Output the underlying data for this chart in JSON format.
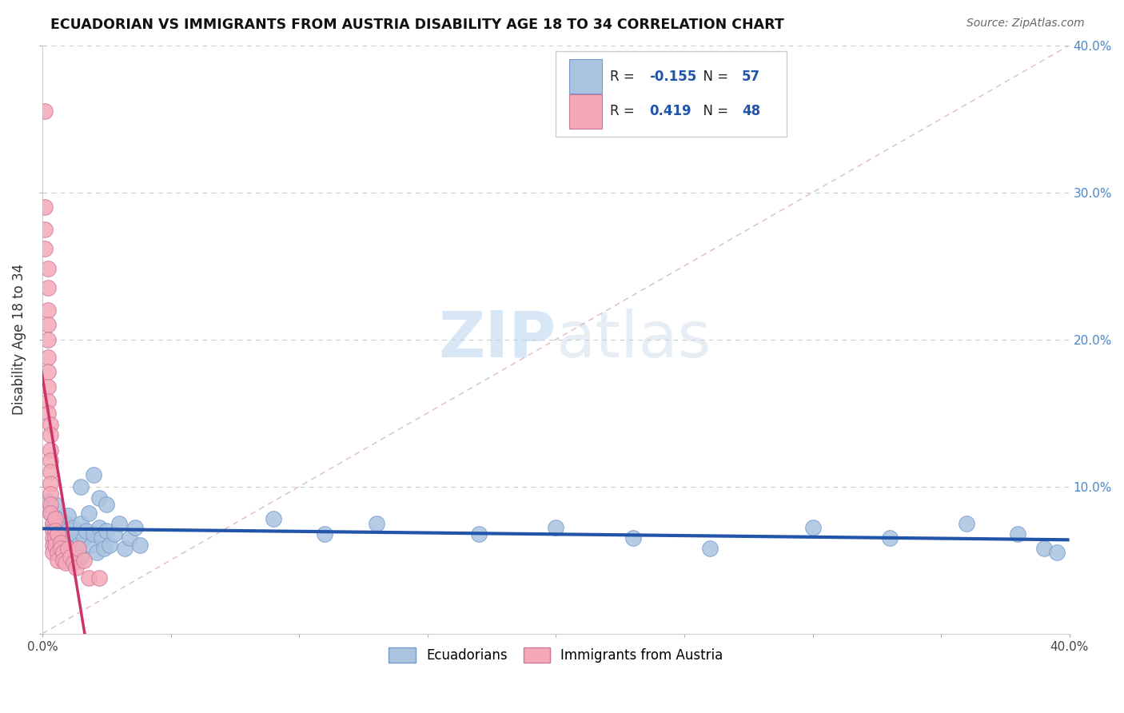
{
  "title": "ECUADORIAN VS IMMIGRANTS FROM AUSTRIA DISABILITY AGE 18 TO 34 CORRELATION CHART",
  "source": "Source: ZipAtlas.com",
  "ylabel": "Disability Age 18 to 34",
  "R_blue": -0.155,
  "N_blue": 57,
  "R_pink": 0.419,
  "N_pink": 48,
  "blue_color": "#aac4e0",
  "pink_color": "#f4a8b8",
  "blue_line_color": "#2255aa",
  "pink_line_color": "#cc3366",
  "diag_color": "#d0a0a8",
  "xlim": [
    0.0,
    0.4
  ],
  "ylim": [
    0.0,
    0.4
  ],
  "blue_scatter": [
    [
      0.002,
      0.09
    ],
    [
      0.003,
      0.082
    ],
    [
      0.004,
      0.075
    ],
    [
      0.005,
      0.07
    ],
    [
      0.005,
      0.088
    ],
    [
      0.006,
      0.078
    ],
    [
      0.006,
      0.065
    ],
    [
      0.007,
      0.072
    ],
    [
      0.007,
      0.062
    ],
    [
      0.008,
      0.068
    ],
    [
      0.008,
      0.058
    ],
    [
      0.009,
      0.075
    ],
    [
      0.009,
      0.065
    ],
    [
      0.01,
      0.08
    ],
    [
      0.01,
      0.07
    ],
    [
      0.011,
      0.062
    ],
    [
      0.012,
      0.072
    ],
    [
      0.012,
      0.058
    ],
    [
      0.013,
      0.068
    ],
    [
      0.014,
      0.06
    ],
    [
      0.015,
      0.075
    ],
    [
      0.016,
      0.065
    ],
    [
      0.017,
      0.07
    ],
    [
      0.018,
      0.082
    ],
    [
      0.019,
      0.06
    ],
    [
      0.02,
      0.068
    ],
    [
      0.021,
      0.055
    ],
    [
      0.022,
      0.072
    ],
    [
      0.023,
      0.065
    ],
    [
      0.024,
      0.058
    ],
    [
      0.025,
      0.07
    ],
    [
      0.026,
      0.06
    ],
    [
      0.028,
      0.068
    ],
    [
      0.03,
      0.075
    ],
    [
      0.032,
      0.058
    ],
    [
      0.034,
      0.065
    ],
    [
      0.036,
      0.072
    ],
    [
      0.038,
      0.06
    ],
    [
      0.015,
      0.1
    ],
    [
      0.02,
      0.108
    ],
    [
      0.022,
      0.092
    ],
    [
      0.025,
      0.088
    ],
    [
      0.09,
      0.078
    ],
    [
      0.11,
      0.068
    ],
    [
      0.13,
      0.075
    ],
    [
      0.17,
      0.068
    ],
    [
      0.2,
      0.072
    ],
    [
      0.23,
      0.065
    ],
    [
      0.26,
      0.058
    ],
    [
      0.3,
      0.072
    ],
    [
      0.33,
      0.065
    ],
    [
      0.36,
      0.075
    ],
    [
      0.38,
      0.068
    ],
    [
      0.39,
      0.058
    ],
    [
      0.395,
      0.055
    ],
    [
      0.01,
      0.058
    ],
    [
      0.015,
      0.052
    ]
  ],
  "pink_scatter": [
    [
      0.001,
      0.355
    ],
    [
      0.001,
      0.29
    ],
    [
      0.001,
      0.275
    ],
    [
      0.001,
      0.262
    ],
    [
      0.002,
      0.248
    ],
    [
      0.002,
      0.235
    ],
    [
      0.002,
      0.22
    ],
    [
      0.002,
      0.21
    ],
    [
      0.002,
      0.2
    ],
    [
      0.002,
      0.188
    ],
    [
      0.002,
      0.178
    ],
    [
      0.002,
      0.168
    ],
    [
      0.002,
      0.158
    ],
    [
      0.002,
      0.15
    ],
    [
      0.003,
      0.142
    ],
    [
      0.003,
      0.135
    ],
    [
      0.003,
      0.125
    ],
    [
      0.003,
      0.118
    ],
    [
      0.003,
      0.11
    ],
    [
      0.003,
      0.102
    ],
    [
      0.003,
      0.095
    ],
    [
      0.003,
      0.088
    ],
    [
      0.003,
      0.082
    ],
    [
      0.004,
      0.075
    ],
    [
      0.004,
      0.07
    ],
    [
      0.004,
      0.065
    ],
    [
      0.004,
      0.06
    ],
    [
      0.004,
      0.055
    ],
    [
      0.005,
      0.078
    ],
    [
      0.005,
      0.07
    ],
    [
      0.005,
      0.065
    ],
    [
      0.005,
      0.06
    ],
    [
      0.006,
      0.055
    ],
    [
      0.006,
      0.05
    ],
    [
      0.006,
      0.068
    ],
    [
      0.007,
      0.062
    ],
    [
      0.007,
      0.058
    ],
    [
      0.008,
      0.055
    ],
    [
      0.008,
      0.05
    ],
    [
      0.009,
      0.048
    ],
    [
      0.01,
      0.058
    ],
    [
      0.011,
      0.052
    ],
    [
      0.012,
      0.048
    ],
    [
      0.013,
      0.045
    ],
    [
      0.014,
      0.058
    ],
    [
      0.016,
      0.05
    ],
    [
      0.018,
      0.038
    ],
    [
      0.022,
      0.038
    ]
  ]
}
